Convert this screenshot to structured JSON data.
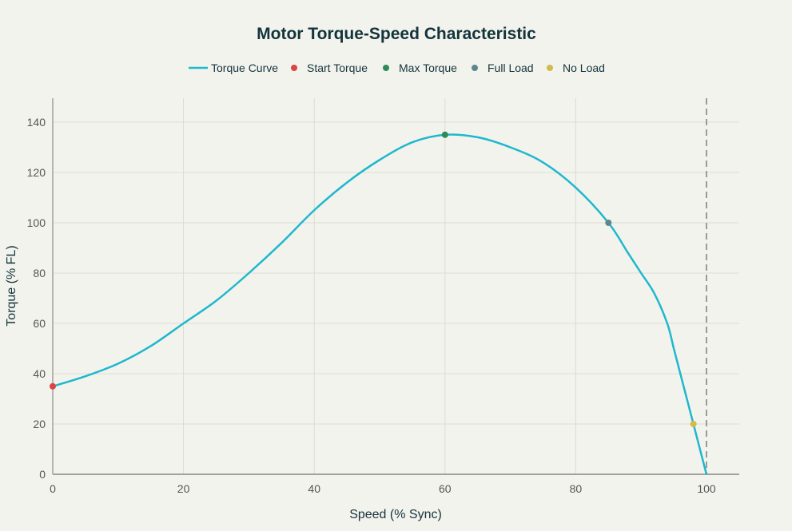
{
  "chart_data": {
    "type": "line",
    "title": "Motor Torque-Speed Characteristic",
    "xlabel": "Speed (% Sync)",
    "ylabel": "Torque (% FL)",
    "xlim": [
      0,
      105
    ],
    "ylim": [
      0,
      150
    ],
    "xticks": [
      0,
      20,
      40,
      60,
      80,
      100
    ],
    "yticks": [
      0,
      20,
      40,
      60,
      80,
      100,
      120,
      140
    ],
    "grid": true,
    "legend_position": "top-center",
    "reference_line": {
      "x": 100,
      "style": "dashed"
    },
    "series": [
      {
        "name": "Torque Curve",
        "kind": "line",
        "color": "#1fb8cd",
        "x": [
          0,
          5,
          10,
          15,
          20,
          25,
          30,
          35,
          40,
          45,
          50,
          55,
          60,
          65,
          70,
          75,
          80,
          85,
          88,
          90,
          92,
          94,
          95,
          96,
          98,
          100
        ],
        "y": [
          35,
          39,
          44,
          51,
          60,
          69,
          80,
          92,
          105,
          116,
          125,
          132,
          135,
          134,
          130,
          124,
          114,
          100,
          88,
          80,
          72,
          60,
          50,
          40,
          20,
          0
        ]
      },
      {
        "name": "Start Torque",
        "kind": "point",
        "color": "#db4545",
        "x": [
          0
        ],
        "y": [
          35
        ]
      },
      {
        "name": "Max Torque",
        "kind": "point",
        "color": "#2e8b57",
        "x": [
          60
        ],
        "y": [
          135
        ]
      },
      {
        "name": "Full Load",
        "kind": "point",
        "color": "#5d878f",
        "x": [
          85
        ],
        "y": [
          100
        ]
      },
      {
        "name": "No Load",
        "kind": "point",
        "color": "#d2ba4c",
        "x": [
          98
        ],
        "y": [
          20
        ]
      }
    ]
  }
}
